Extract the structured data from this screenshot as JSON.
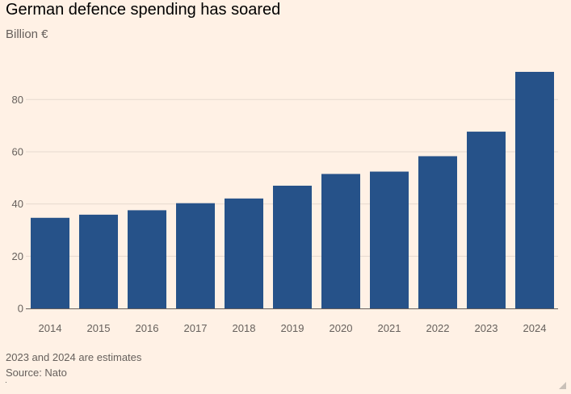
{
  "chart_data": {
    "type": "bar",
    "title": "German defence spending has soared",
    "subtitle": "Billion €",
    "categories": [
      "2014",
      "2015",
      "2016",
      "2017",
      "2018",
      "2019",
      "2020",
      "2021",
      "2022",
      "2023",
      "2024"
    ],
    "values": [
      34.7,
      35.9,
      37.6,
      40.3,
      42.1,
      47.0,
      51.5,
      52.4,
      58.3,
      67.7,
      90.6
    ],
    "yticks": [
      "0",
      "20",
      "40",
      "60",
      "80"
    ],
    "ylim": [
      0,
      90.6
    ],
    "xlabel": "",
    "ylabel": "",
    "grid": true,
    "bar_color": "#265289",
    "grid_color": "#e6d9ce"
  },
  "footer": {
    "note": "2023 and 2024 are estimates",
    "source": "Source: Nato"
  },
  "colors": {
    "background": "#fff1e5"
  }
}
